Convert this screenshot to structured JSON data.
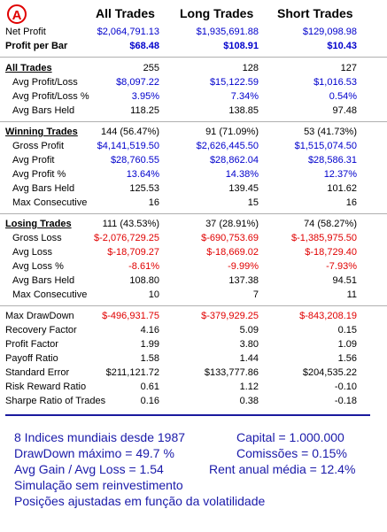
{
  "logo_letter": "A",
  "headers": {
    "all": "All Trades",
    "long": "Long Trades",
    "short": "Short Trades"
  },
  "top": [
    {
      "label": "Net Profit",
      "all": "$2,064,791.13",
      "long": "$1,935,691.88",
      "short": "$129,098.98"
    },
    {
      "label": "Profit per Bar",
      "all": "$68.48",
      "long": "$108.91",
      "short": "$10.43"
    }
  ],
  "all_trades": {
    "title": "All Trades",
    "all": "255",
    "long": "128",
    "short": "127",
    "rows": [
      {
        "label": "Avg Profit/Loss",
        "all": "$8,097.22",
        "long": "$15,122.59",
        "short": "$1,016.53"
      },
      {
        "label": "Avg Profit/Loss %",
        "all": "3.95%",
        "long": "7.34%",
        "short": "0.54%"
      },
      {
        "label": "Avg Bars Held",
        "all": "118.25",
        "long": "138.85",
        "short": "97.48"
      }
    ]
  },
  "winning": {
    "title": "Winning Trades",
    "all": "144 (56.47%)",
    "long": "91 (71.09%)",
    "short": "53 (41.73%)",
    "rows": [
      {
        "label": "Gross Profit",
        "all": "$4,141,519.50",
        "long": "$2,626,445.50",
        "short": "$1,515,074.50"
      },
      {
        "label": "Avg Profit",
        "all": "$28,760.55",
        "long": "$28,862.04",
        "short": "$28,586.31"
      },
      {
        "label": "Avg Profit %",
        "all": "13.64%",
        "long": "14.38%",
        "short": "12.37%"
      },
      {
        "label": "Avg Bars Held",
        "all": "125.53",
        "long": "139.45",
        "short": "101.62"
      },
      {
        "label": "Max Consecutive",
        "all": "16",
        "long": "15",
        "short": "16"
      }
    ]
  },
  "losing": {
    "title": "Losing Trades",
    "all": "111 (43.53%)",
    "long": "37 (28.91%)",
    "short": "74 (58.27%)",
    "rows": [
      {
        "label": "Gross Loss",
        "all": "$-2,076,729.25",
        "long": "$-690,753.69",
        "short": "$-1,385,975.50"
      },
      {
        "label": "Avg Loss",
        "all": "$-18,709.27",
        "long": "$-18,669.02",
        "short": "$-18,729.40"
      },
      {
        "label": "Avg Loss %",
        "all": "-8.61%",
        "long": "-9.99%",
        "short": "-7.93%"
      },
      {
        "label": "Avg Bars Held",
        "all": "108.80",
        "long": "137.38",
        "short": "94.51"
      },
      {
        "label": "Max Consecutive",
        "all": "10",
        "long": "7",
        "short": "11"
      }
    ]
  },
  "stats": [
    {
      "label": "Max DrawDown",
      "all": "$-496,931.75",
      "long": "$-379,929.25",
      "short": "$-843,208.19"
    },
    {
      "label": "Recovery Factor",
      "all": "4.16",
      "long": "5.09",
      "short": "0.15"
    },
    {
      "label": "Profit Factor",
      "all": "1.99",
      "long": "3.80",
      "short": "1.09"
    },
    {
      "label": "Payoff Ratio",
      "all": "1.58",
      "long": "1.44",
      "short": "1.56"
    },
    {
      "label": "Standard Error",
      "all": "$211,121.72",
      "long": "$133,777.86",
      "short": "$204,535.22"
    },
    {
      "label": "Risk Reward Ratio",
      "all": "0.61",
      "long": "1.12",
      "short": "-0.10"
    },
    {
      "label": "Sharpe Ratio of Trades",
      "all": "0.16",
      "long": "0.38",
      "short": "-0.18"
    }
  ],
  "notes": {
    "line1_left": "8 Indices mundiais desde 1987",
    "line1_right": "Capital = 1.000.000",
    "line2_left": "DrawDown máximo = 49.7 %",
    "line2_right": "Comissões = 0.15%",
    "line3_left": "Avg Gain / Avg Loss = 1.54",
    "line3_right": "Rent anual média = 12.4%",
    "line4": "Simulação sem reinvestimento",
    "line5": "Posições ajustadas em função da volatilidade"
  }
}
